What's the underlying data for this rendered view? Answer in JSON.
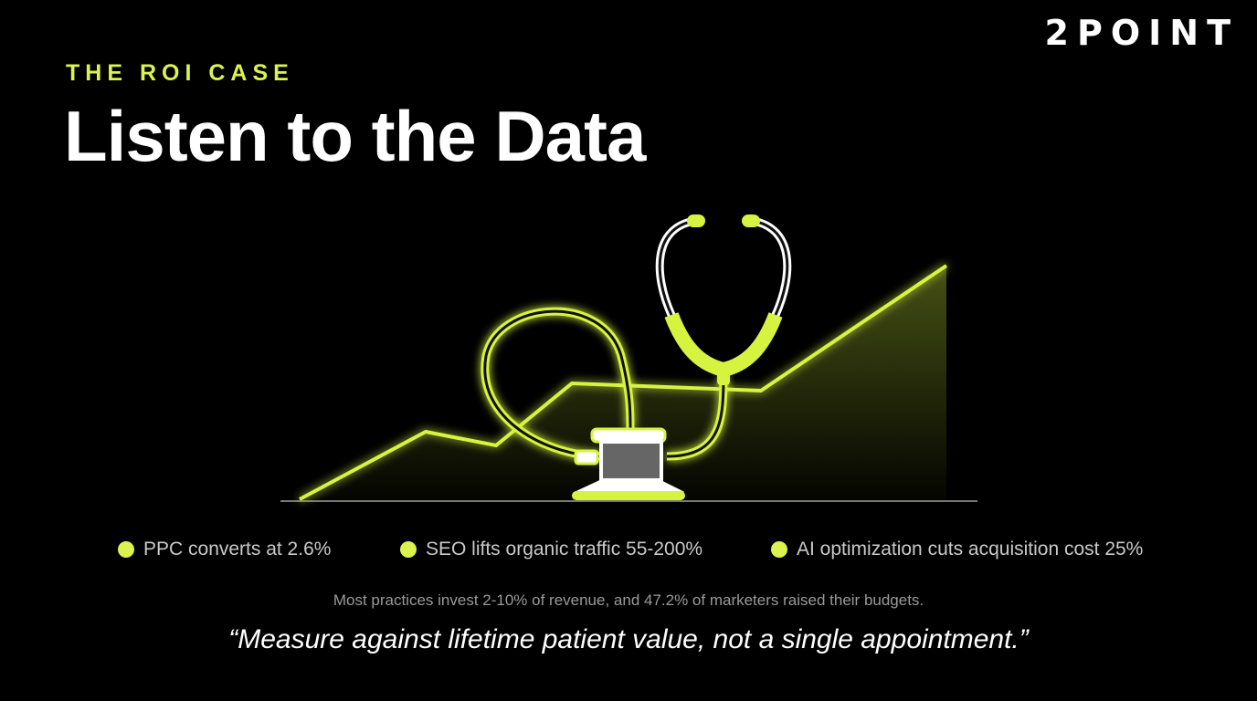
{
  "brand": "2POINT",
  "header": {
    "eyebrow": "THE ROI CASE",
    "title": "Listen to the Data"
  },
  "bullets": [
    "PPC converts at 2.6%",
    "SEO lifts organic traffic 55-200%",
    "AI optimization cuts acquisition cost 25%"
  ],
  "note": "Most practices invest 2-10% of revenue, and 47.2% of marketers raised their budgets.",
  "quote": "“Measure against lifetime patient value, not a single appointment.”"
}
